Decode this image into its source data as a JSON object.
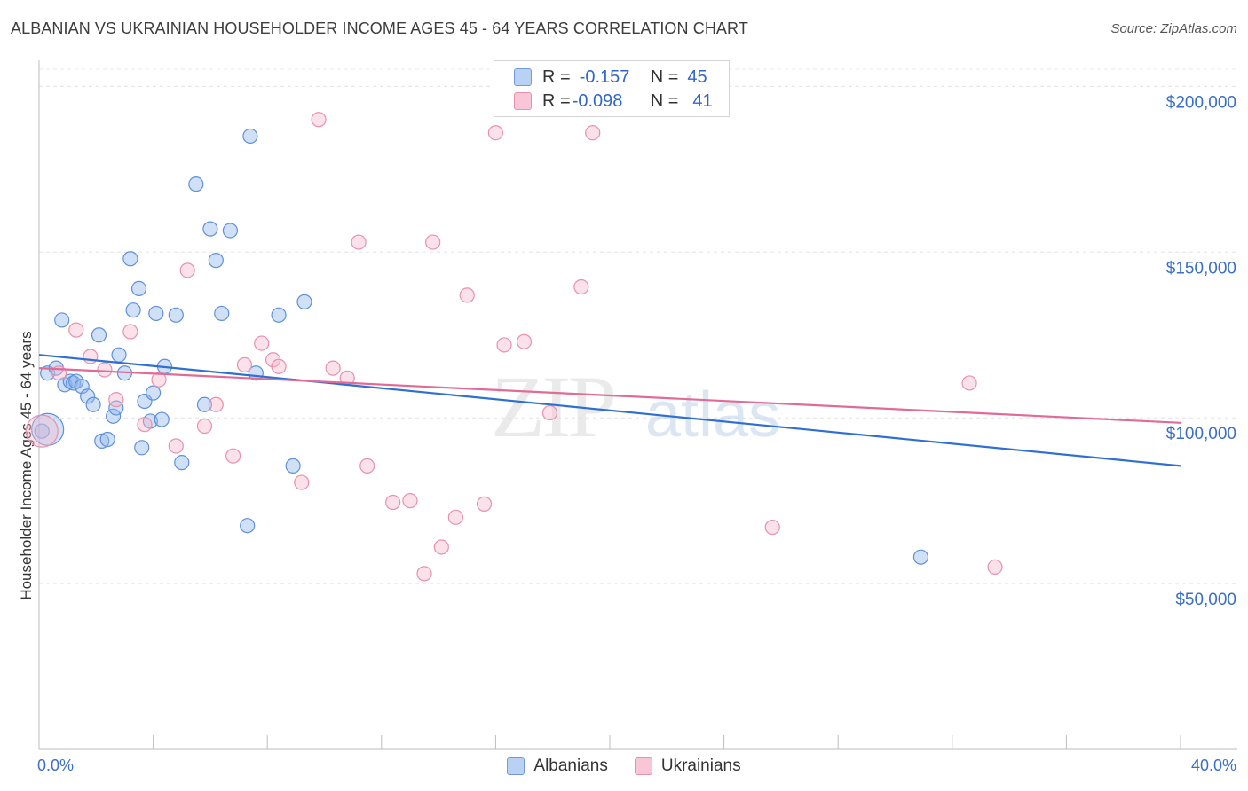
{
  "title": "ALBANIAN VS UKRAINIAN HOUSEHOLDER INCOME AGES 45 - 64 YEARS CORRELATION CHART",
  "source": "Source: ZipAtlas.com",
  "watermark": {
    "zip": "ZIP",
    "atlas": "atlas"
  },
  "legend": {
    "albanians": {
      "r_label": "R = ",
      "r_value": "-0.157",
      "n_label": "N = ",
      "n_value": "45"
    },
    "ukrainians": {
      "r_label": "R = ",
      "r_value": "-0.098",
      "n_label": "N = ",
      "n_value": "41"
    }
  },
  "chart_data": {
    "type": "scatter",
    "title": "ALBANIAN VS UKRAINIAN HOUSEHOLDER INCOME AGES 45 - 64 YEARS CORRELATION CHART",
    "xlabel": "",
    "ylabel": "Householder Income Ages 45 - 64 years",
    "xlim": [
      0,
      40
    ],
    "ylim": [
      0,
      210000
    ],
    "x_tick_labels": [
      {
        "value": 0,
        "label": "0.0%"
      },
      {
        "value": 40,
        "label": "40.0%"
      }
    ],
    "y_tick_labels": [
      {
        "value": 50000,
        "label": "$50,000"
      },
      {
        "value": 100000,
        "label": "$100,000"
      },
      {
        "value": 150000,
        "label": "$150,000"
      },
      {
        "value": 200000,
        "label": "$200,000"
      }
    ],
    "grid": true,
    "legend_position": "top-center",
    "series": [
      {
        "name": "Albanians",
        "color": "#8fb6ec",
        "stroke": "#5e91db",
        "trend_color": "#2e6fd1",
        "trend": {
          "x": [
            0,
            40
          ],
          "y": [
            119000,
            85500
          ]
        },
        "points": [
          [
            0.1,
            96000
          ],
          [
            0.3,
            113500
          ],
          [
            0.6,
            115000
          ],
          [
            0.8,
            129500
          ],
          [
            0.9,
            110000
          ],
          [
            1.1,
            111000
          ],
          [
            1.2,
            110500
          ],
          [
            1.3,
            111000
          ],
          [
            1.5,
            109500
          ],
          [
            1.7,
            106500
          ],
          [
            1.9,
            104000
          ],
          [
            2.1,
            125000
          ],
          [
            2.2,
            93000
          ],
          [
            2.4,
            93500
          ],
          [
            2.6,
            100500
          ],
          [
            2.7,
            103000
          ],
          [
            2.8,
            119000
          ],
          [
            3.0,
            113500
          ],
          [
            3.2,
            148000
          ],
          [
            3.3,
            132500
          ],
          [
            3.5,
            139000
          ],
          [
            3.6,
            91000
          ],
          [
            3.7,
            105000
          ],
          [
            3.9,
            99000
          ],
          [
            4.0,
            107500
          ],
          [
            4.1,
            131500
          ],
          [
            4.4,
            115500
          ],
          [
            4.3,
            99500
          ],
          [
            4.8,
            131000
          ],
          [
            5.0,
            86500
          ],
          [
            5.5,
            170500
          ],
          [
            5.8,
            104000
          ],
          [
            6.0,
            157000
          ],
          [
            6.2,
            147500
          ],
          [
            6.4,
            131500
          ],
          [
            6.7,
            156500
          ],
          [
            7.3,
            67500
          ],
          [
            7.4,
            185000
          ],
          [
            7.6,
            113500
          ],
          [
            8.4,
            131000
          ],
          [
            8.9,
            85500
          ],
          [
            9.3,
            135000
          ],
          [
            30.9,
            58000
          ]
        ],
        "large_points": [
          [
            0.3,
            96500
          ]
        ]
      },
      {
        "name": "Ukrainians",
        "color": "#f5b8cb",
        "stroke": "#e891ad",
        "trend_color": "#e06b97",
        "trend": {
          "x": [
            0,
            40
          ],
          "y": [
            115000,
            98500
          ]
        },
        "points": [
          [
            0.7,
            113500
          ],
          [
            1.3,
            126500
          ],
          [
            1.8,
            118500
          ],
          [
            2.3,
            114500
          ],
          [
            2.7,
            105500
          ],
          [
            3.2,
            126000
          ],
          [
            3.7,
            98000
          ],
          [
            4.2,
            111500
          ],
          [
            4.8,
            91500
          ],
          [
            5.2,
            144500
          ],
          [
            5.8,
            97500
          ],
          [
            6.2,
            104000
          ],
          [
            6.8,
            88500
          ],
          [
            7.2,
            116000
          ],
          [
            7.8,
            122500
          ],
          [
            8.2,
            117500
          ],
          [
            8.4,
            115500
          ],
          [
            9.2,
            80500
          ],
          [
            9.8,
            190000
          ],
          [
            10.3,
            115000
          ],
          [
            10.8,
            112000
          ],
          [
            11.2,
            153000
          ],
          [
            11.5,
            85500
          ],
          [
            12.4,
            74500
          ],
          [
            13.0,
            75000
          ],
          [
            13.5,
            53000
          ],
          [
            13.8,
            153000
          ],
          [
            14.1,
            61000
          ],
          [
            14.6,
            70000
          ],
          [
            15.0,
            137000
          ],
          [
            15.6,
            74000
          ],
          [
            16.0,
            186000
          ],
          [
            16.3,
            122000
          ],
          [
            17.0,
            123000
          ],
          [
            17.9,
            101500
          ],
          [
            19.0,
            139500
          ],
          [
            19.4,
            186000
          ],
          [
            25.7,
            67000
          ],
          [
            32.6,
            110500
          ],
          [
            33.5,
            55000
          ]
        ],
        "large_points": [
          [
            0.1,
            96000
          ]
        ]
      }
    ]
  }
}
